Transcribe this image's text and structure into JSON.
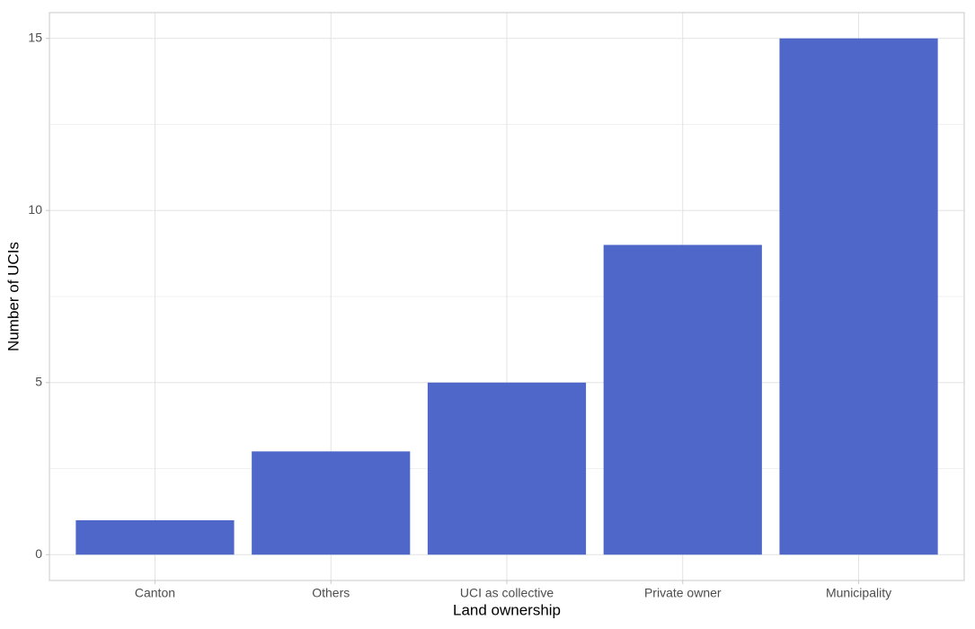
{
  "chart_data": {
    "type": "bar",
    "x_label": "Land ownership",
    "y_label": "Number of UCIs",
    "categories": [
      "Canton",
      "Others",
      "UCI as collective",
      "Private owner",
      "Municipality"
    ],
    "values": [
      1,
      3,
      5,
      9,
      15
    ],
    "color": "#4f67c9",
    "ylim": [
      -0.75,
      15.75
    ],
    "yticks": [
      0,
      5,
      10,
      15
    ],
    "y_minor_ticks": [
      2.5,
      7.5,
      12.5
    ],
    "grid": true
  }
}
